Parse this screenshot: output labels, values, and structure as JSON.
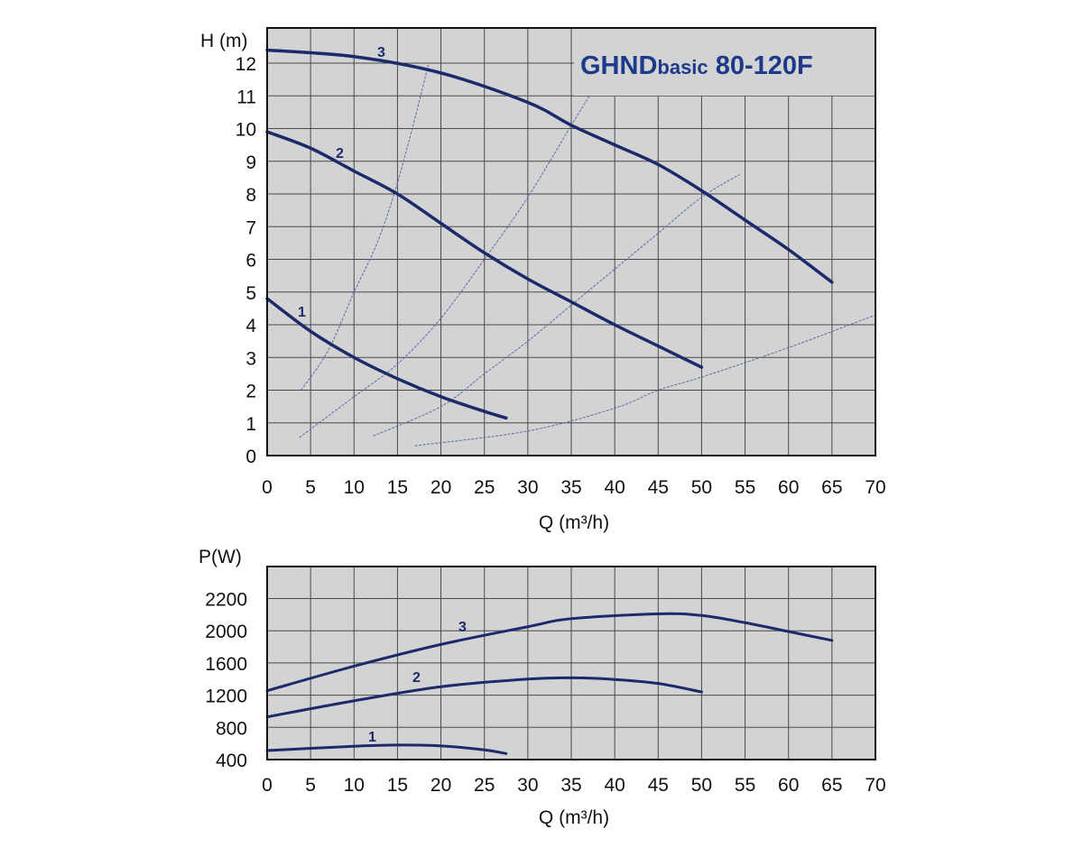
{
  "colors": {
    "background": "#d3d3d3",
    "grid": "#4a4a4a",
    "curve": "#1b2a6b",
    "system_curve": "#5a6aa8",
    "title": "#1c3a8a"
  },
  "chart_data": [
    {
      "type": "line",
      "title_main": "GHND",
      "title_sub": "basic",
      "title_model": " 80-120F",
      "xlabel": "Q (m³/h)",
      "ylabel": "H (m)",
      "xlim": [
        0,
        70
      ],
      "ylim": [
        0,
        13.1
      ],
      "xticks": [
        "0",
        "5",
        "10",
        "15",
        "20",
        "25",
        "30",
        "35",
        "40",
        "45",
        "50",
        "55",
        "60",
        "65",
        "70"
      ],
      "yticks": [
        "0",
        "1",
        "2",
        "3",
        "4",
        "5",
        "6",
        "7",
        "8",
        "9",
        "10",
        "11",
        "12"
      ],
      "grid": true,
      "series": [
        {
          "name": "3",
          "points": [
            [
              0,
              12.4
            ],
            [
              10,
              12.2
            ],
            [
              20,
              11.7
            ],
            [
              30,
              10.8
            ],
            [
              35,
              10.1
            ],
            [
              40,
              9.5
            ],
            [
              45,
              8.9
            ],
            [
              50,
              8.1
            ],
            [
              55,
              7.2
            ],
            [
              60,
              6.3
            ],
            [
              65,
              5.3
            ]
          ]
        },
        {
          "name": "2",
          "points": [
            [
              0,
              9.9
            ],
            [
              5,
              9.4
            ],
            [
              10,
              8.7
            ],
            [
              15,
              8.0
            ],
            [
              20,
              7.1
            ],
            [
              25,
              6.2
            ],
            [
              30,
              5.4
            ],
            [
              35,
              4.7
            ],
            [
              40,
              4.0
            ],
            [
              45,
              3.35
            ],
            [
              50,
              2.7
            ]
          ]
        },
        {
          "name": "1",
          "points": [
            [
              0,
              4.8
            ],
            [
              5,
              3.8
            ],
            [
              10,
              3.0
            ],
            [
              15,
              2.35
            ],
            [
              20,
              1.8
            ],
            [
              25,
              1.35
            ],
            [
              27.5,
              1.15
            ]
          ]
        }
      ],
      "system_curves": [
        {
          "points": [
            [
              3.9,
              2.0
            ],
            [
              7,
              3.2
            ],
            [
              10,
              5.0
            ],
            [
              12.5,
              6.4
            ],
            [
              14.5,
              7.9
            ],
            [
              16.5,
              9.8
            ],
            [
              18.6,
              12.0
            ]
          ]
        },
        {
          "points": [
            [
              3.7,
              0.55
            ],
            [
              10,
              1.8
            ],
            [
              15,
              2.8
            ],
            [
              20,
              4.2
            ],
            [
              25,
              6.0
            ],
            [
              30,
              7.9
            ],
            [
              35,
              10.1
            ],
            [
              37.1,
              11.0
            ]
          ]
        },
        {
          "points": [
            [
              12.2,
              0.6
            ],
            [
              20,
              1.5
            ],
            [
              25,
              2.5
            ],
            [
              30,
              3.5
            ],
            [
              35,
              4.6
            ],
            [
              40,
              5.7
            ],
            [
              45,
              6.8
            ],
            [
              50,
              7.9
            ],
            [
              54.4,
              8.6
            ]
          ]
        },
        {
          "points": [
            [
              17,
              0.3
            ],
            [
              30,
              0.75
            ],
            [
              40,
              1.45
            ],
            [
              45,
              2.0
            ],
            [
              50,
              2.4
            ],
            [
              60,
              3.3
            ],
            [
              70,
              4.3
            ]
          ]
        }
      ]
    },
    {
      "type": "line",
      "xlabel": "Q (m³/h)",
      "ylabel": "P(W)",
      "xlim": [
        0,
        70
      ],
      "xticks": [
        "0",
        "5",
        "10",
        "15",
        "20",
        "25",
        "30",
        "35",
        "40",
        "45",
        "50",
        "55",
        "60",
        "65",
        "70"
      ],
      "yticks": [
        400,
        800,
        1200,
        1600,
        2000,
        2200
      ],
      "grid": true,
      "series": [
        {
          "name": "3",
          "points": [
            [
              0,
              1255
            ],
            [
              10,
              1560
            ],
            [
              20,
              1830
            ],
            [
              30,
              2025
            ],
            [
              35,
              2075
            ],
            [
              45,
              2105
            ],
            [
              50,
              2095
            ],
            [
              55,
              2050
            ],
            [
              60,
              1990
            ],
            [
              65,
              1880
            ]
          ]
        },
        {
          "name": "2",
          "points": [
            [
              0,
              930
            ],
            [
              10,
              1130
            ],
            [
              20,
              1305
            ],
            [
              30,
              1400
            ],
            [
              35,
              1415
            ],
            [
              40,
              1395
            ],
            [
              45,
              1345
            ],
            [
              50,
              1240
            ]
          ]
        },
        {
          "name": "1",
          "points": [
            [
              0,
              512
            ],
            [
              10,
              565
            ],
            [
              15,
              580
            ],
            [
              20,
              570
            ],
            [
              25,
              520
            ],
            [
              27.5,
              475
            ]
          ]
        }
      ]
    }
  ]
}
